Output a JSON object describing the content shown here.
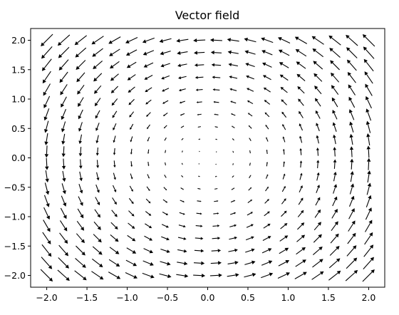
{
  "chart_data": {
    "type": "quiver",
    "title": "Vector field",
    "xlabel": "",
    "ylabel": "",
    "xlim": [
      -2.2,
      2.2
    ],
    "ylim": [
      -2.2,
      2.2
    ],
    "xticks": [
      -2.0,
      -1.5,
      -1.0,
      -0.5,
      0.0,
      0.5,
      1.0,
      1.5,
      2.0
    ],
    "xtick_labels": [
      "−2.0",
      "−1.5",
      "−1.0",
      "−0.5",
      "0.0",
      "0.5",
      "1.0",
      "1.5",
      "2.0"
    ],
    "yticks": [
      -2.0,
      -1.5,
      -1.0,
      -0.5,
      0.0,
      0.5,
      1.0,
      1.5,
      2.0
    ],
    "ytick_labels": [
      "−2.0",
      "−1.5",
      "−1.0",
      "−0.5",
      "0.0",
      "0.5",
      "1.0",
      "1.5",
      "2.0"
    ],
    "grid": false,
    "field": {
      "u": "-y",
      "v": "x",
      "x_range": [
        -2.0,
        2.0
      ],
      "y_range": [
        -2.0,
        2.0
      ],
      "n": 20
    },
    "arrow_color": "#000000"
  }
}
